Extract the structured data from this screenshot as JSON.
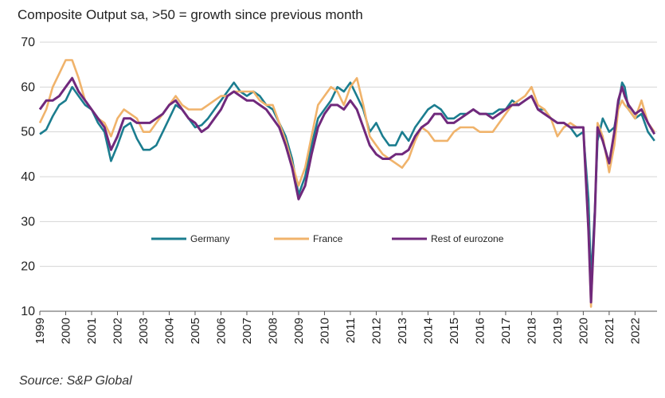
{
  "title": "Composite Output sa, >50 = growth since previous month",
  "source": "Source:  S&P Global",
  "chart_data": {
    "type": "line",
    "title": "Composite Output sa, >50 = growth since previous month",
    "xlabel": "",
    "ylabel": "",
    "ylim": [
      10,
      70
    ],
    "yticks": [
      10,
      20,
      30,
      40,
      50,
      60,
      70
    ],
    "xlim": [
      1999.0,
      2022.85
    ],
    "xticks": [
      "1999",
      "2000",
      "2001",
      "2002",
      "2003",
      "2004",
      "2005",
      "2006",
      "2007",
      "2008",
      "2009",
      "2010",
      "2011",
      "2012",
      "2013",
      "2014",
      "2015",
      "2016",
      "2017",
      "2018",
      "2019",
      "2020",
      "2021",
      "2022"
    ],
    "grid": "horizontal",
    "legend_position": "middle",
    "series": [
      {
        "name": "Germany",
        "color": "#1b7d8f",
        "points": [
          [
            1999.0,
            49.5
          ],
          [
            1999.25,
            50.5
          ],
          [
            1999.5,
            53.5
          ],
          [
            1999.75,
            56
          ],
          [
            2000.0,
            57
          ],
          [
            2000.25,
            60
          ],
          [
            2000.5,
            58
          ],
          [
            2000.75,
            56
          ],
          [
            2001.0,
            55
          ],
          [
            2001.25,
            52
          ],
          [
            2001.5,
            50
          ],
          [
            2001.75,
            43.5
          ],
          [
            2002.0,
            47
          ],
          [
            2002.25,
            51
          ],
          [
            2002.5,
            52
          ],
          [
            2002.75,
            48.5
          ],
          [
            2003.0,
            46
          ],
          [
            2003.25,
            46
          ],
          [
            2003.5,
            47
          ],
          [
            2003.75,
            50
          ],
          [
            2004.0,
            53
          ],
          [
            2004.25,
            56
          ],
          [
            2004.5,
            55
          ],
          [
            2004.75,
            53
          ],
          [
            2005.0,
            51
          ],
          [
            2005.25,
            51.5
          ],
          [
            2005.5,
            53
          ],
          [
            2005.75,
            55
          ],
          [
            2006.0,
            57
          ],
          [
            2006.25,
            59
          ],
          [
            2006.5,
            61
          ],
          [
            2006.75,
            59
          ],
          [
            2007.0,
            58
          ],
          [
            2007.25,
            59
          ],
          [
            2007.5,
            58
          ],
          [
            2007.75,
            56
          ],
          [
            2008.0,
            55
          ],
          [
            2008.25,
            52
          ],
          [
            2008.5,
            49
          ],
          [
            2008.75,
            44
          ],
          [
            2009.0,
            36
          ],
          [
            2009.25,
            40
          ],
          [
            2009.5,
            47
          ],
          [
            2009.75,
            53
          ],
          [
            2010.0,
            55
          ],
          [
            2010.25,
            57
          ],
          [
            2010.5,
            60
          ],
          [
            2010.75,
            59
          ],
          [
            2011.0,
            61
          ],
          [
            2011.25,
            58
          ],
          [
            2011.5,
            55
          ],
          [
            2011.75,
            50
          ],
          [
            2012.0,
            52
          ],
          [
            2012.25,
            49
          ],
          [
            2012.5,
            47
          ],
          [
            2012.75,
            47
          ],
          [
            2013.0,
            50
          ],
          [
            2013.25,
            48
          ],
          [
            2013.5,
            51
          ],
          [
            2013.75,
            53
          ],
          [
            2014.0,
            55
          ],
          [
            2014.25,
            56
          ],
          [
            2014.5,
            55
          ],
          [
            2014.75,
            53
          ],
          [
            2015.0,
            53
          ],
          [
            2015.25,
            54
          ],
          [
            2015.5,
            54
          ],
          [
            2015.75,
            55
          ],
          [
            2016.0,
            54
          ],
          [
            2016.25,
            54
          ],
          [
            2016.5,
            54
          ],
          [
            2016.75,
            55
          ],
          [
            2017.0,
            55
          ],
          [
            2017.25,
            57
          ],
          [
            2017.5,
            56
          ],
          [
            2017.75,
            57
          ],
          [
            2018.0,
            58
          ],
          [
            2018.25,
            55
          ],
          [
            2018.5,
            55
          ],
          [
            2018.75,
            53
          ],
          [
            2019.0,
            52
          ],
          [
            2019.25,
            52
          ],
          [
            2019.5,
            51
          ],
          [
            2019.75,
            49
          ],
          [
            2020.0,
            50
          ],
          [
            2020.2,
            35
          ],
          [
            2020.3,
            17
          ],
          [
            2020.45,
            33
          ],
          [
            2020.55,
            48
          ],
          [
            2020.75,
            53
          ],
          [
            2021.0,
            50
          ],
          [
            2021.2,
            51
          ],
          [
            2021.35,
            56
          ],
          [
            2021.5,
            61
          ],
          [
            2021.6,
            60
          ],
          [
            2021.75,
            55
          ],
          [
            2022.0,
            53
          ],
          [
            2022.25,
            54
          ],
          [
            2022.5,
            50
          ],
          [
            2022.75,
            48
          ]
        ]
      },
      {
        "name": "France",
        "color": "#f0b36b",
        "points": [
          [
            1999.0,
            52
          ],
          [
            1999.25,
            55
          ],
          [
            1999.5,
            60
          ],
          [
            1999.75,
            63
          ],
          [
            2000.0,
            66
          ],
          [
            2000.25,
            66
          ],
          [
            2000.5,
            62
          ],
          [
            2000.75,
            57
          ],
          [
            2001.0,
            55
          ],
          [
            2001.25,
            53
          ],
          [
            2001.5,
            52
          ],
          [
            2001.75,
            49
          ],
          [
            2002.0,
            53
          ],
          [
            2002.25,
            55
          ],
          [
            2002.5,
            54
          ],
          [
            2002.75,
            53
          ],
          [
            2003.0,
            50
          ],
          [
            2003.25,
            50
          ],
          [
            2003.5,
            52
          ],
          [
            2003.75,
            54
          ],
          [
            2004.0,
            56
          ],
          [
            2004.25,
            58
          ],
          [
            2004.5,
            56
          ],
          [
            2004.75,
            55
          ],
          [
            2005.0,
            55
          ],
          [
            2005.25,
            55
          ],
          [
            2005.5,
            56
          ],
          [
            2005.75,
            57
          ],
          [
            2006.0,
            58
          ],
          [
            2006.25,
            58
          ],
          [
            2006.5,
            59
          ],
          [
            2006.75,
            59
          ],
          [
            2007.0,
            59
          ],
          [
            2007.25,
            59
          ],
          [
            2007.5,
            57
          ],
          [
            2007.75,
            56
          ],
          [
            2008.0,
            56
          ],
          [
            2008.25,
            52
          ],
          [
            2008.5,
            48
          ],
          [
            2008.75,
            43
          ],
          [
            2009.0,
            38
          ],
          [
            2009.25,
            42
          ],
          [
            2009.5,
            49
          ],
          [
            2009.75,
            56
          ],
          [
            2010.0,
            58
          ],
          [
            2010.25,
            60
          ],
          [
            2010.5,
            59
          ],
          [
            2010.75,
            56
          ],
          [
            2011.0,
            60
          ],
          [
            2011.25,
            62
          ],
          [
            2011.5,
            56
          ],
          [
            2011.75,
            49
          ],
          [
            2012.0,
            47
          ],
          [
            2012.25,
            45
          ],
          [
            2012.5,
            44
          ],
          [
            2012.75,
            43
          ],
          [
            2013.0,
            42
          ],
          [
            2013.25,
            44
          ],
          [
            2013.5,
            48
          ],
          [
            2013.75,
            51
          ],
          [
            2014.0,
            50
          ],
          [
            2014.25,
            48
          ],
          [
            2014.5,
            48
          ],
          [
            2014.75,
            48
          ],
          [
            2015.0,
            50
          ],
          [
            2015.25,
            51
          ],
          [
            2015.5,
            51
          ],
          [
            2015.75,
            51
          ],
          [
            2016.0,
            50
          ],
          [
            2016.25,
            50
          ],
          [
            2016.5,
            50
          ],
          [
            2016.75,
            52
          ],
          [
            2017.0,
            54
          ],
          [
            2017.25,
            56
          ],
          [
            2017.5,
            57
          ],
          [
            2017.75,
            58
          ],
          [
            2018.0,
            60
          ],
          [
            2018.25,
            56
          ],
          [
            2018.5,
            55
          ],
          [
            2018.75,
            53
          ],
          [
            2019.0,
            49
          ],
          [
            2019.25,
            51
          ],
          [
            2019.5,
            52
          ],
          [
            2019.75,
            51
          ],
          [
            2020.0,
            51
          ],
          [
            2020.2,
            29
          ],
          [
            2020.3,
            11
          ],
          [
            2020.45,
            32
          ],
          [
            2020.55,
            52
          ],
          [
            2020.75,
            49
          ],
          [
            2021.0,
            41
          ],
          [
            2021.2,
            47
          ],
          [
            2021.35,
            55
          ],
          [
            2021.5,
            57
          ],
          [
            2021.6,
            56
          ],
          [
            2021.75,
            55
          ],
          [
            2022.0,
            53
          ],
          [
            2022.25,
            57
          ],
          [
            2022.5,
            52
          ],
          [
            2022.75,
            50
          ]
        ]
      },
      {
        "name": "Rest of eurozone",
        "color": "#70297c",
        "points": [
          [
            1999.0,
            55
          ],
          [
            1999.25,
            57
          ],
          [
            1999.5,
            57
          ],
          [
            1999.75,
            58
          ],
          [
            2000.0,
            60
          ],
          [
            2000.25,
            62
          ],
          [
            2000.5,
            59
          ],
          [
            2000.75,
            57
          ],
          [
            2001.0,
            55
          ],
          [
            2001.25,
            53
          ],
          [
            2001.5,
            51
          ],
          [
            2001.75,
            46
          ],
          [
            2002.0,
            49
          ],
          [
            2002.25,
            53
          ],
          [
            2002.5,
            53
          ],
          [
            2002.75,
            52
          ],
          [
            2003.0,
            52
          ],
          [
            2003.25,
            52
          ],
          [
            2003.5,
            53
          ],
          [
            2003.75,
            54
          ],
          [
            2004.0,
            56
          ],
          [
            2004.25,
            57
          ],
          [
            2004.5,
            55
          ],
          [
            2004.75,
            53
          ],
          [
            2005.0,
            52
          ],
          [
            2005.25,
            50
          ],
          [
            2005.5,
            51
          ],
          [
            2005.75,
            53
          ],
          [
            2006.0,
            55
          ],
          [
            2006.25,
            58
          ],
          [
            2006.5,
            59
          ],
          [
            2006.75,
            58
          ],
          [
            2007.0,
            57
          ],
          [
            2007.25,
            57
          ],
          [
            2007.5,
            56
          ],
          [
            2007.75,
            55
          ],
          [
            2008.0,
            53
          ],
          [
            2008.25,
            51
          ],
          [
            2008.5,
            47
          ],
          [
            2008.75,
            42
          ],
          [
            2009.0,
            35
          ],
          [
            2009.25,
            38
          ],
          [
            2009.5,
            45
          ],
          [
            2009.75,
            51
          ],
          [
            2010.0,
            54
          ],
          [
            2010.25,
            56
          ],
          [
            2010.5,
            56
          ],
          [
            2010.75,
            55
          ],
          [
            2011.0,
            57
          ],
          [
            2011.25,
            55
          ],
          [
            2011.5,
            51
          ],
          [
            2011.75,
            47
          ],
          [
            2012.0,
            45
          ],
          [
            2012.25,
            44
          ],
          [
            2012.5,
            44
          ],
          [
            2012.75,
            45
          ],
          [
            2013.0,
            45
          ],
          [
            2013.25,
            46
          ],
          [
            2013.5,
            49
          ],
          [
            2013.75,
            51
          ],
          [
            2014.0,
            52
          ],
          [
            2014.25,
            54
          ],
          [
            2014.5,
            54
          ],
          [
            2014.75,
            52
          ],
          [
            2015.0,
            52
          ],
          [
            2015.25,
            53
          ],
          [
            2015.5,
            54
          ],
          [
            2015.75,
            55
          ],
          [
            2016.0,
            54
          ],
          [
            2016.25,
            54
          ],
          [
            2016.5,
            53
          ],
          [
            2016.75,
            54
          ],
          [
            2017.0,
            55
          ],
          [
            2017.25,
            56
          ],
          [
            2017.5,
            56
          ],
          [
            2017.75,
            57
          ],
          [
            2018.0,
            58
          ],
          [
            2018.25,
            55
          ],
          [
            2018.5,
            54
          ],
          [
            2018.75,
            53
          ],
          [
            2019.0,
            52
          ],
          [
            2019.25,
            52
          ],
          [
            2019.5,
            51
          ],
          [
            2019.75,
            51
          ],
          [
            2020.0,
            51
          ],
          [
            2020.2,
            28
          ],
          [
            2020.3,
            12
          ],
          [
            2020.45,
            32
          ],
          [
            2020.55,
            51
          ],
          [
            2020.75,
            48
          ],
          [
            2021.0,
            43
          ],
          [
            2021.2,
            50
          ],
          [
            2021.35,
            57
          ],
          [
            2021.5,
            60
          ],
          [
            2021.6,
            58
          ],
          [
            2021.75,
            56
          ],
          [
            2022.0,
            54
          ],
          [
            2022.25,
            55
          ],
          [
            2022.5,
            52
          ],
          [
            2022.75,
            49.5
          ]
        ]
      }
    ]
  }
}
